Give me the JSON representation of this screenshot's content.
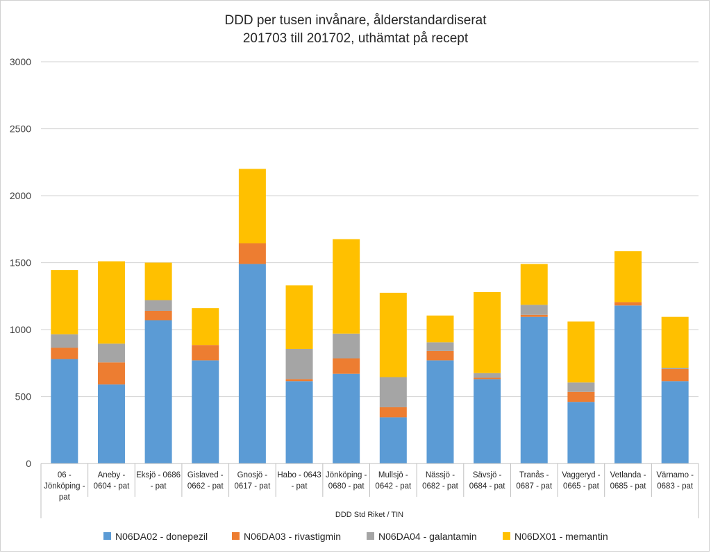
{
  "chart_data": {
    "type": "bar",
    "stacked": true,
    "title": [
      "DDD per tusen invånare, ålderstandardiserat",
      "201703 till 201702, uthämtat på recept"
    ],
    "xlabel": "DDD Std Riket / TIN",
    "ylabel": "",
    "ylim": [
      0,
      3000
    ],
    "yticks": [
      0,
      500,
      1000,
      1500,
      2000,
      2500,
      3000
    ],
    "grid": true,
    "legend_position": "bottom",
    "categories": [
      [
        "06 -",
        "Jönköping -",
        "pat"
      ],
      [
        "Aneby -",
        "0604 - pat"
      ],
      [
        "Eksjö - 0686",
        "- pat"
      ],
      [
        "Gislaved -",
        "0662 - pat"
      ],
      [
        "Gnosjö -",
        "0617 - pat"
      ],
      [
        "Habo - 0643",
        "- pat"
      ],
      [
        "Jönköping -",
        "0680 - pat"
      ],
      [
        "Mullsjö -",
        "0642 - pat"
      ],
      [
        "Nässjö -",
        "0682 - pat"
      ],
      [
        "Sävsjö -",
        "0684 - pat"
      ],
      [
        "Tranås -",
        "0687 - pat"
      ],
      [
        "Vaggeryd -",
        "0665 - pat"
      ],
      [
        "Vetlanda -",
        "0685 - pat"
      ],
      [
        "Värnamo -",
        "0683 - pat"
      ]
    ],
    "series": [
      {
        "name": "N06DA02 - donepezil",
        "color": "#5b9bd5",
        "values": [
          780,
          590,
          1070,
          770,
          1490,
          615,
          670,
          345,
          770,
          630,
          1095,
          460,
          1180,
          615
        ]
      },
      {
        "name": "N06DA03 - rivastigmin",
        "color": "#ed7d31",
        "values": [
          85,
          165,
          70,
          115,
          155,
          15,
          115,
          75,
          70,
          10,
          15,
          75,
          25,
          90
        ]
      },
      {
        "name": "N06DA04 - galantamin",
        "color": "#a5a5a5",
        "values": [
          100,
          140,
          80,
          0,
          0,
          225,
          185,
          225,
          65,
          35,
          75,
          70,
          0,
          10
        ]
      },
      {
        "name": "N06DX01 - memantin",
        "color": "#ffc000",
        "values": [
          480,
          615,
          280,
          275,
          555,
          475,
          705,
          630,
          200,
          605,
          305,
          455,
          380,
          380
        ]
      }
    ]
  },
  "colors": {
    "grid": "#d9d9d9",
    "axis": "#bfbfbf"
  }
}
